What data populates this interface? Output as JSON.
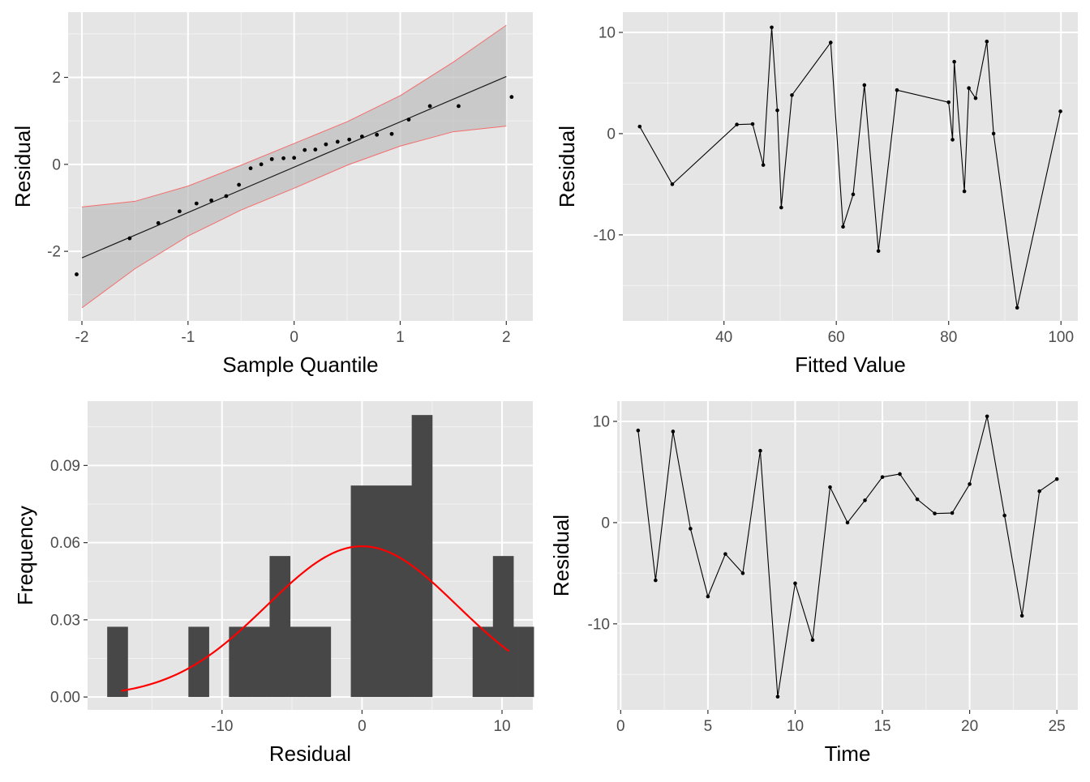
{
  "colors": {
    "panel_bg": "#e5e5e5",
    "grid_major": "#ffffff",
    "points": "#000000",
    "qq_band": "#bdbdbd",
    "qq_band_edge": "#f46d6d",
    "hist_bar": "#474747",
    "density_curve": "#ff0000"
  },
  "chart_data": [
    {
      "type": "scatter",
      "panel": "qq-plot",
      "xlabel": "Sample Quantile",
      "ylabel": "Residual",
      "xlim": [
        -2.13,
        2.25
      ],
      "ylim": [
        -3.6,
        3.5
      ],
      "x_ticks": [
        -2,
        -1,
        0,
        1,
        2
      ],
      "x_tick_labels": [
        "-2",
        "-1",
        "0",
        "1",
        "2"
      ],
      "y_ticks": [
        -2,
        0,
        2
      ],
      "y_tick_labels": [
        "-2",
        "0",
        "2"
      ],
      "reference_line": {
        "x": [
          -2.0,
          2.0
        ],
        "y": [
          -2.15,
          2.02
        ]
      },
      "confidence_band": {
        "x": [
          -2.0,
          -1.5,
          -1.0,
          -0.5,
          0.0,
          0.5,
          1.0,
          1.5,
          2.0
        ],
        "lower": [
          -3.3,
          -2.4,
          -1.65,
          -1.05,
          -0.55,
          -0.02,
          0.42,
          0.75,
          0.88
        ],
        "upper": [
          -0.98,
          -0.85,
          -0.5,
          -0.02,
          0.48,
          0.98,
          1.58,
          2.35,
          3.2
        ]
      },
      "points": {
        "x": [
          -2.05,
          -1.55,
          -1.28,
          -1.08,
          -0.92,
          -0.78,
          -0.64,
          -0.52,
          -0.41,
          -0.31,
          -0.21,
          -0.1,
          0.0,
          0.1,
          0.2,
          0.3,
          0.41,
          0.52,
          0.64,
          0.78,
          0.92,
          1.08,
          1.28,
          1.55,
          2.05
        ],
        "y": [
          -2.53,
          -1.7,
          -1.35,
          -1.08,
          -0.9,
          -0.83,
          -0.73,
          -0.47,
          -0.09,
          0.0,
          0.12,
          0.14,
          0.15,
          0.33,
          0.34,
          0.46,
          0.52,
          0.57,
          0.64,
          0.68,
          0.7,
          1.03,
          1.34,
          1.34,
          1.55
        ]
      }
    },
    {
      "type": "line",
      "panel": "residual-vs-fitted",
      "xlabel": "Fitted Value",
      "ylabel": "Residual",
      "xlim": [
        22,
        103
      ],
      "ylim": [
        -18.5,
        12
      ],
      "x_ticks": [
        40,
        60,
        80,
        100
      ],
      "x_tick_labels": [
        "40",
        "60",
        "80",
        "100"
      ],
      "y_ticks": [
        -10,
        0,
        10
      ],
      "y_tick_labels": [
        "-10",
        "0",
        "10"
      ],
      "x": [
        25.0,
        30.8,
        42.3,
        45.1,
        47.0,
        48.5,
        49.5,
        50.2,
        52.1,
        59.0,
        61.2,
        63.0,
        65.0,
        67.5,
        70.8,
        80.0,
        80.7,
        81.0,
        82.8,
        83.6,
        84.8,
        86.8,
        88.0,
        92.2,
        99.9
      ],
      "y": [
        0.7,
        -5.0,
        0.9,
        0.95,
        -3.1,
        10.5,
        2.3,
        -7.3,
        3.8,
        9.0,
        -9.2,
        -6.0,
        4.8,
        -11.6,
        4.3,
        3.1,
        -0.6,
        7.1,
        -5.7,
        4.5,
        3.5,
        9.1,
        0.0,
        -17.2,
        2.2
      ]
    },
    {
      "type": "bar",
      "panel": "residual-histogram",
      "xlabel": "Residual",
      "ylabel": "Frequency",
      "xlim": [
        -19.6,
        12.2
      ],
      "ylim": [
        -0.005,
        0.115
      ],
      "x_ticks": [
        -10,
        0,
        10
      ],
      "x_tick_labels": [
        "-10",
        "0",
        "10"
      ],
      "y_ticks": [
        0.0,
        0.03,
        0.06,
        0.09
      ],
      "y_tick_labels": [
        "0.00",
        "0.03",
        "0.06",
        "0.09"
      ],
      "bin_width": 1.45,
      "bin_start": -18.2,
      "values": [
        0.0273,
        0,
        0,
        0,
        0.0273,
        0,
        0.0273,
        0.0273,
        0.0548,
        0.0273,
        0.0273,
        0,
        0.0822,
        0.0822,
        0.0822,
        0.1096,
        0,
        0,
        0.0273,
        0.0548,
        0.0273
      ],
      "density_curve": {
        "mean": 0.0,
        "sd": 6.8,
        "x_range": [
          -17.2,
          10.5
        ],
        "peak": 0.0586
      }
    },
    {
      "type": "line",
      "panel": "residual-vs-time",
      "xlabel": "Time",
      "ylabel": "Residual",
      "xlim": [
        -0.2,
        26.2
      ],
      "ylim": [
        -18.5,
        12
      ],
      "x_ticks": [
        0,
        5,
        10,
        15,
        20,
        25
      ],
      "x_tick_labels": [
        "0",
        "5",
        "10",
        "15",
        "20",
        "25"
      ],
      "y_ticks": [
        -10,
        0,
        10
      ],
      "y_tick_labels": [
        "-10",
        "0",
        "10"
      ],
      "x": [
        1,
        2,
        3,
        4,
        5,
        6,
        7,
        8,
        9,
        10,
        11,
        12,
        13,
        14,
        15,
        16,
        17,
        18,
        19,
        20,
        21,
        22,
        23,
        24,
        25
      ],
      "y": [
        9.1,
        -5.7,
        9.0,
        -0.6,
        -7.3,
        -3.1,
        -5.0,
        7.1,
        -17.2,
        -6.0,
        -11.6,
        3.5,
        0.0,
        2.2,
        4.5,
        4.8,
        2.3,
        0.9,
        0.95,
        3.8,
        10.5,
        0.7,
        -9.2,
        3.1,
        4.3
      ]
    }
  ]
}
